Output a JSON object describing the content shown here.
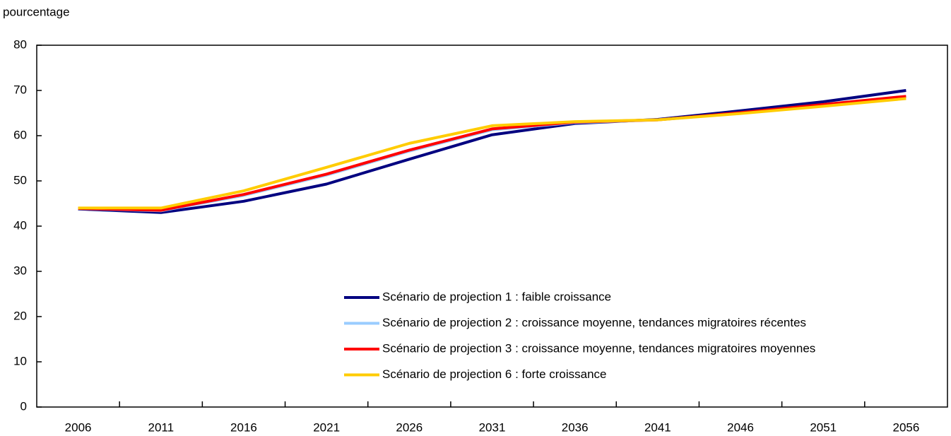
{
  "chart_data": {
    "type": "line",
    "y_axis_label": "pourcentage",
    "categories": [
      "2006",
      "2011",
      "2016",
      "2021",
      "2026",
      "2031",
      "2036",
      "2041",
      "2046",
      "2051",
      "2056"
    ],
    "series": [
      {
        "name": "Scénario de projection 1 : faible croissance",
        "color": "#000080",
        "values": [
          43.8,
          43.0,
          45.5,
          49.3,
          54.8,
          60.2,
          62.7,
          63.6,
          65.5,
          67.5,
          70.0
        ]
      },
      {
        "name": "Scénario de projection 2 : croissance moyenne, tendances migratoires récentes",
        "color": "#99ccff",
        "values": [
          43.9,
          43.4,
          46.8,
          51.3,
          56.6,
          61.3,
          62.9,
          63.5,
          65.0,
          66.8,
          68.6
        ]
      },
      {
        "name": "Scénario de projection 3 : croissance moyenne, tendances migratoires moyennes",
        "color": "#ff0000",
        "values": [
          43.9,
          43.5,
          47.0,
          51.5,
          56.8,
          61.5,
          63.0,
          63.5,
          65.1,
          66.9,
          68.7
        ]
      },
      {
        "name": "Scénario de projection 6 : forte croissance",
        "color": "#ffcc00",
        "values": [
          44.0,
          44.0,
          47.8,
          53.0,
          58.3,
          62.2,
          63.1,
          63.5,
          64.9,
          66.5,
          68.2
        ]
      }
    ],
    "ylim": [
      0,
      80
    ],
    "yticks": [
      0,
      10,
      20,
      30,
      40,
      50,
      60,
      70,
      80
    ],
    "grid": false,
    "legend": "lower center"
  }
}
